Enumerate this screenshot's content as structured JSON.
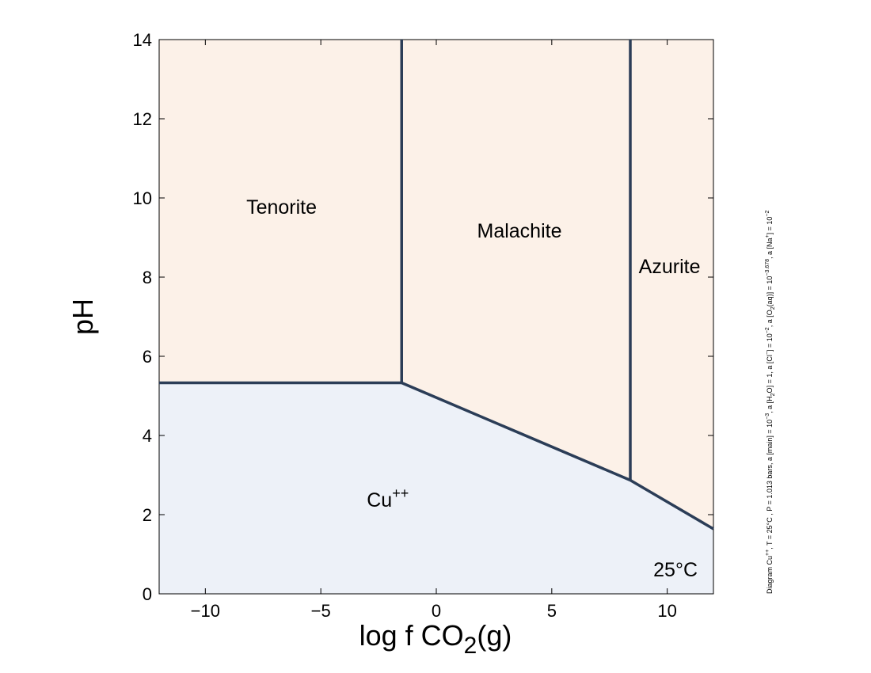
{
  "chart_data": {
    "type": "phase-diagram",
    "xlabel": "log f CO2(g)",
    "xlabel_parts": {
      "pre": "log f CO",
      "sub": "2",
      "post": "(g)"
    },
    "ylabel": "pH",
    "xlim": [
      -12,
      12
    ],
    "ylim": [
      0,
      14
    ],
    "xticks": [
      -10,
      -5,
      0,
      5,
      10
    ],
    "xtick_labels": [
      "−10",
      "−5",
      "0",
      "5",
      "10"
    ],
    "yticks": [
      0,
      2,
      4,
      6,
      8,
      10,
      12,
      14
    ],
    "ytick_labels": [
      "0",
      "2",
      "4",
      "6",
      "8",
      "10",
      "12",
      "14"
    ],
    "temperature_label": "25°C",
    "colors": {
      "mineral_fill": "#fcf1e8",
      "aqueous_fill": "#edf1f8",
      "boundary": "#2b3d57"
    },
    "fields": [
      {
        "name": "Tenorite",
        "kind": "mineral",
        "label": "Tenorite",
        "label_at": [
          -6.7,
          9.6
        ],
        "polygon": [
          [
            -12,
            5.33
          ],
          [
            -1.5,
            5.33
          ],
          [
            -1.5,
            14
          ],
          [
            -12,
            14
          ]
        ]
      },
      {
        "name": "Malachite",
        "kind": "mineral",
        "label": "Malachite",
        "label_at": [
          3.6,
          9.0
        ],
        "polygon": [
          [
            -1.5,
            5.33
          ],
          [
            8.4,
            2.87
          ],
          [
            8.4,
            14
          ],
          [
            -1.5,
            14
          ]
        ]
      },
      {
        "name": "Azurite",
        "kind": "mineral",
        "label": "Azurite",
        "label_at": [
          10.1,
          8.1
        ],
        "polygon": [
          [
            8.4,
            2.87
          ],
          [
            12,
            1.64
          ],
          [
            12,
            14
          ],
          [
            8.4,
            14
          ]
        ]
      },
      {
        "name": "Cu++",
        "kind": "aqueous",
        "label": "Cu",
        "label_sup": "++",
        "label_at": [
          -2.1,
          2.2
        ],
        "polygon": [
          [
            -12,
            0
          ],
          [
            12,
            0
          ],
          [
            12,
            1.64
          ],
          [
            8.4,
            2.87
          ],
          [
            -1.5,
            5.33
          ],
          [
            -12,
            5.33
          ]
        ]
      }
    ],
    "boundaries": [
      {
        "name": "tenorite-cu",
        "points": [
          [
            -12,
            5.33
          ],
          [
            -1.5,
            5.33
          ]
        ]
      },
      {
        "name": "malachite-cu",
        "points": [
          [
            -1.5,
            5.33
          ],
          [
            8.4,
            2.87
          ]
        ]
      },
      {
        "name": "azurite-cu",
        "points": [
          [
            8.4,
            2.87
          ],
          [
            12,
            1.64
          ]
        ]
      },
      {
        "name": "tenorite-malachite",
        "points": [
          [
            -1.5,
            5.33
          ],
          [
            -1.5,
            14
          ]
        ]
      },
      {
        "name": "malachite-azurite",
        "points": [
          [
            8.4,
            2.87
          ],
          [
            8.4,
            14
          ]
        ]
      }
    ]
  },
  "side_note": {
    "runs": [
      {
        "t": "Diagram Cu"
      },
      {
        "t": "++",
        "sup": true
      },
      {
        "t": ", T  =  25°C , P  =  1.013 bars, a [main]  =  10"
      },
      {
        "t": "−3",
        "sup": true
      },
      {
        "t": ", a [H"
      },
      {
        "t": "2",
        "sub": true
      },
      {
        "t": "O]  =  1, a [Cl"
      },
      {
        "t": "−",
        "sup": true
      },
      {
        "t": "]  =  10"
      },
      {
        "t": "−2",
        "sup": true
      },
      {
        "t": ", a [O"
      },
      {
        "t": "2",
        "sub": true
      },
      {
        "t": "(aq)]  =  10"
      },
      {
        "t": "−3.678",
        "sup": true
      },
      {
        "t": ", a [Na"
      },
      {
        "t": "+",
        "sup": true
      },
      {
        "t": "]  =  10"
      },
      {
        "t": "−2",
        "sup": true
      }
    ]
  }
}
